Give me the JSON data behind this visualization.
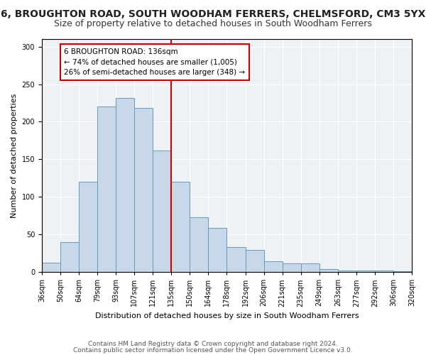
{
  "title": "6, BROUGHTON ROAD, SOUTH WOODHAM FERRERS, CHELMSFORD, CM3 5YX",
  "subtitle": "Size of property relative to detached houses in South Woodham Ferrers",
  "xlabel": "Distribution of detached houses by size in South Woodham Ferrers",
  "ylabel": "Number of detached properties",
  "bin_labels": [
    "36sqm",
    "50sqm",
    "64sqm",
    "79sqm",
    "93sqm",
    "107sqm",
    "121sqm",
    "135sqm",
    "150sqm",
    "164sqm",
    "178sqm",
    "192sqm",
    "206sqm",
    "221sqm",
    "235sqm",
    "249sqm",
    "263sqm",
    "277sqm",
    "292sqm",
    "306sqm",
    "320sqm"
  ],
  "bar_heights": [
    12,
    40,
    120,
    220,
    232,
    218,
    162,
    120,
    73,
    59,
    33,
    29,
    14,
    11,
    11,
    4,
    2,
    2,
    2,
    1
  ],
  "bar_color": "#c8d8e8",
  "bar_edge_color": "#6699bb",
  "reference_line_color": "#cc0000",
  "annotation_text": "6 BROUGHTON ROAD: 136sqm\n← 74% of detached houses are smaller (1,005)\n26% of semi-detached houses are larger (348) →",
  "annotation_box_color": "#ffffff",
  "annotation_box_edge_color": "#cc0000",
  "ylim": [
    0,
    310
  ],
  "yticks": [
    0,
    50,
    100,
    150,
    200,
    250,
    300
  ],
  "footer_line1": "Contains HM Land Registry data © Crown copyright and database right 2024.",
  "footer_line2": "Contains public sector information licensed under the Open Government Licence v3.0.",
  "title_fontsize": 10,
  "subtitle_fontsize": 9,
  "axis_label_fontsize": 8,
  "tick_fontsize": 7,
  "footer_fontsize": 6.5,
  "bg_color": "#eef2f7"
}
